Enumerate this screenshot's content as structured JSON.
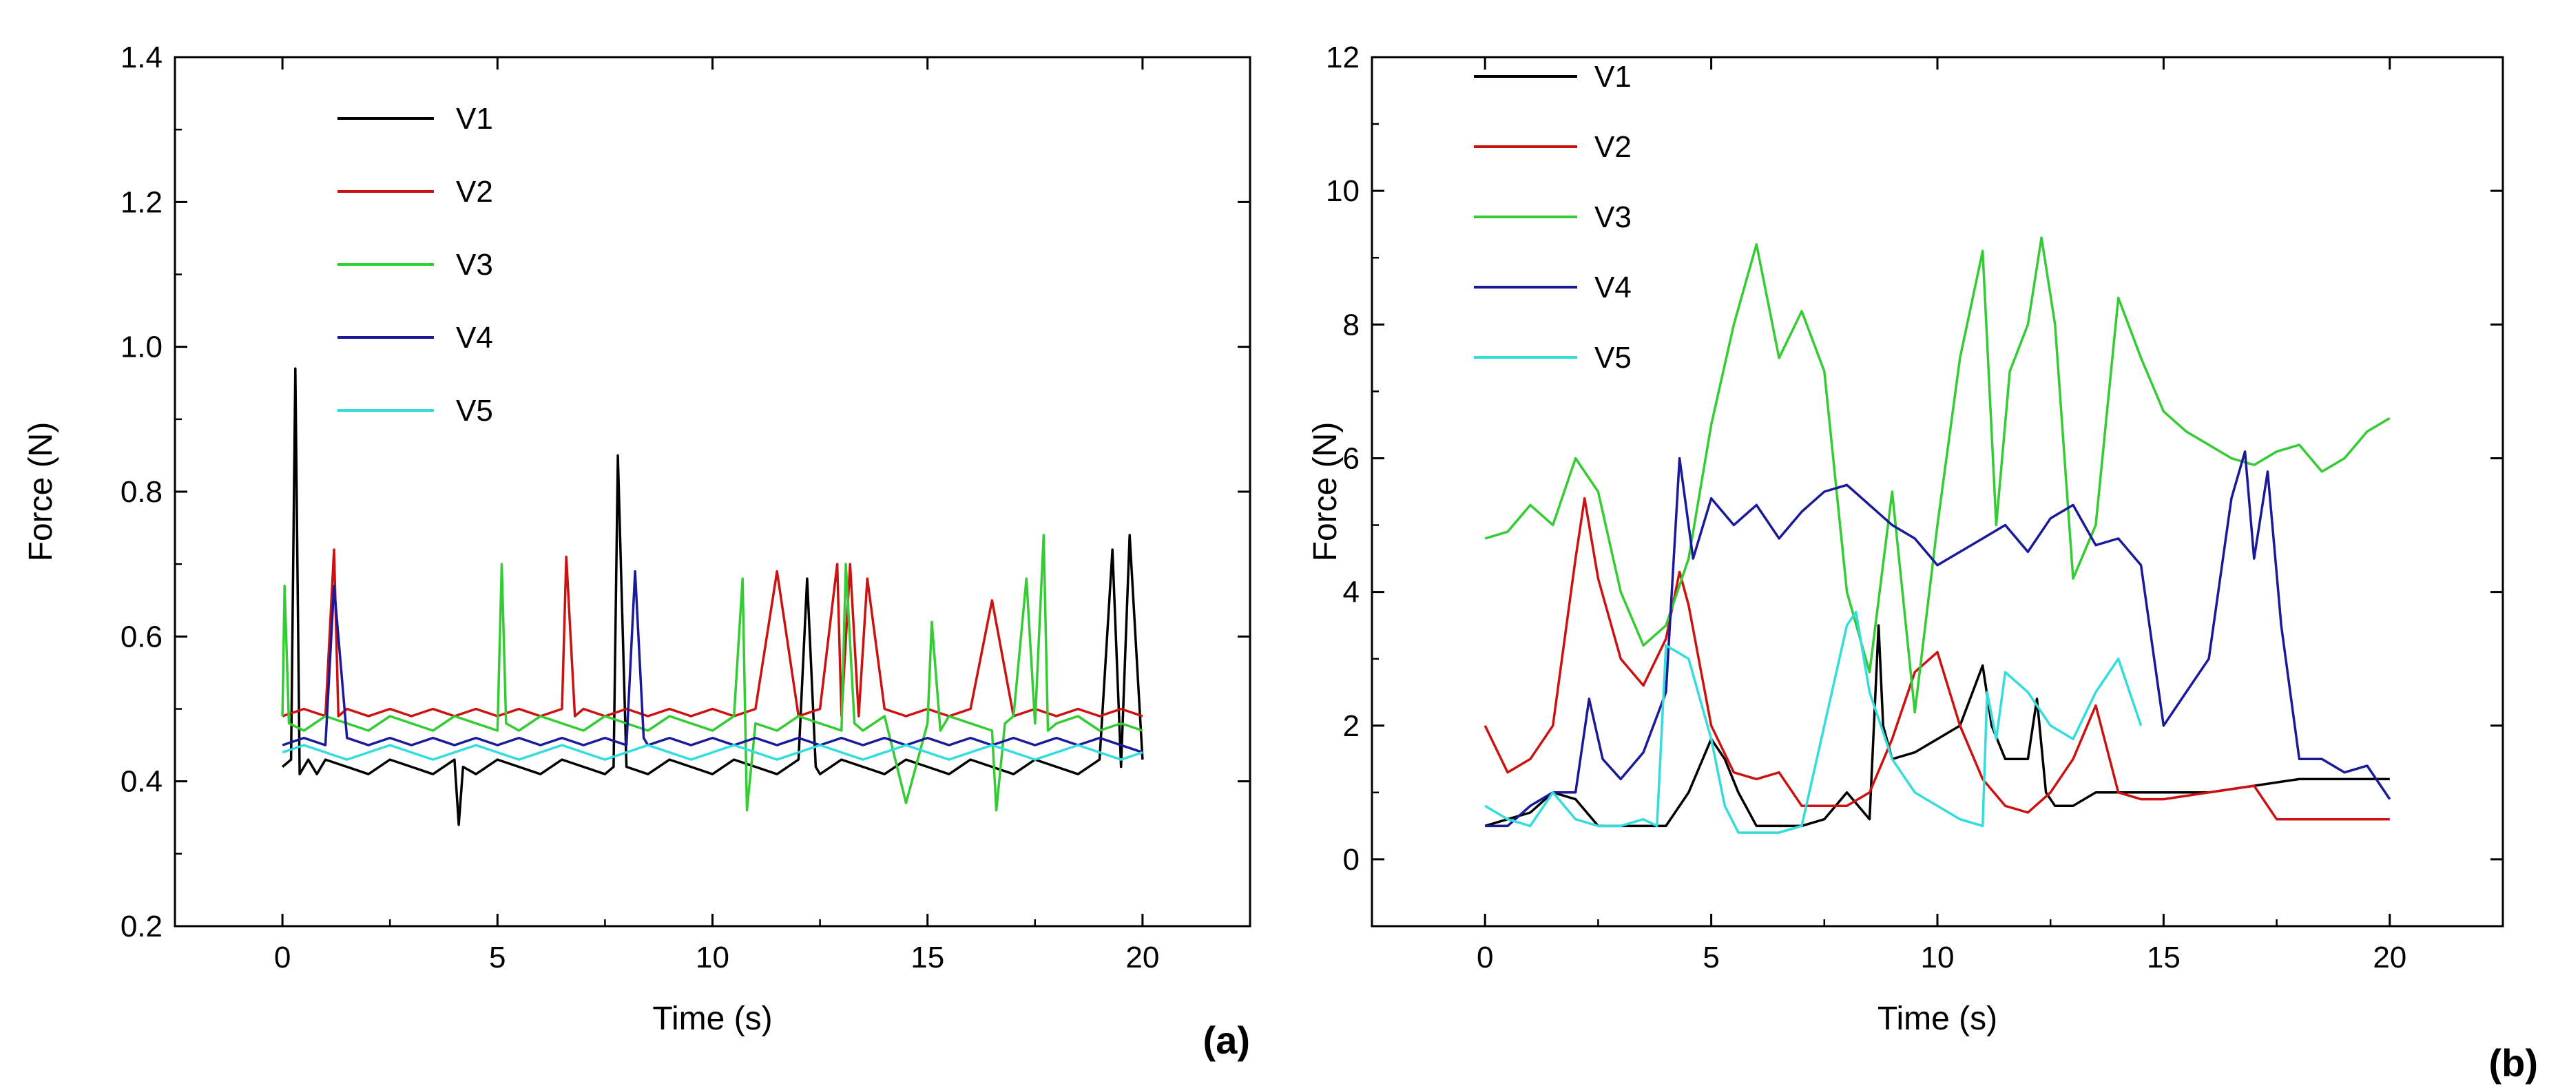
{
  "chart_data": [
    {
      "type": "line",
      "panel_label": "(a)",
      "xlabel": "Time (s)",
      "ylabel": "Force (N)",
      "xlim": [
        -2.5,
        22.5
      ],
      "ylim": [
        0.2,
        1.4
      ],
      "xticks": [
        0,
        5,
        10,
        15,
        20
      ],
      "yticks": [
        0.2,
        0.4,
        0.6,
        0.8,
        1.0,
        1.2,
        1.4
      ],
      "ytick_labels": [
        "0.2",
        "0.4",
        "0.6",
        "0.8",
        "1.0",
        "1.2",
        "1.4"
      ],
      "grid": false,
      "legend_placement": "top-left",
      "series": [
        {
          "name": "V1",
          "color": "#000000",
          "x": [
            0,
            0.2,
            0.3,
            0.4,
            0.6,
            0.8,
            1.0,
            1.5,
            2.0,
            2.5,
            3.0,
            3.5,
            4.0,
            4.1,
            4.2,
            4.5,
            5.0,
            5.5,
            6.0,
            6.5,
            7.0,
            7.5,
            7.7,
            7.8,
            8.0,
            8.5,
            9.0,
            9.5,
            10.0,
            10.5,
            11.0,
            11.5,
            12.0,
            12.2,
            12.4,
            12.5,
            13.0,
            13.5,
            14.0,
            14.5,
            15.0,
            15.5,
            16.0,
            16.5,
            17.0,
            17.5,
            18.0,
            18.5,
            19.0,
            19.3,
            19.5,
            19.7,
            20.0
          ],
          "y": [
            0.42,
            0.43,
            0.97,
            0.41,
            0.43,
            0.41,
            0.43,
            0.42,
            0.41,
            0.43,
            0.42,
            0.41,
            0.43,
            0.34,
            0.42,
            0.41,
            0.43,
            0.42,
            0.41,
            0.43,
            0.42,
            0.41,
            0.42,
            0.85,
            0.42,
            0.41,
            0.43,
            0.42,
            0.41,
            0.43,
            0.42,
            0.41,
            0.43,
            0.68,
            0.42,
            0.41,
            0.43,
            0.42,
            0.41,
            0.43,
            0.42,
            0.41,
            0.43,
            0.42,
            0.41,
            0.43,
            0.42,
            0.41,
            0.43,
            0.72,
            0.42,
            0.74,
            0.43
          ]
        },
        {
          "name": "V2",
          "color": "#cc1111",
          "x": [
            0,
            0.5,
            1.0,
            1.2,
            1.3,
            1.5,
            2.0,
            2.5,
            3.0,
            3.5,
            4.0,
            4.5,
            5.0,
            5.5,
            6.0,
            6.5,
            6.6,
            6.8,
            7.0,
            7.5,
            8.0,
            8.5,
            9.0,
            9.5,
            10.0,
            10.5,
            11.0,
            11.5,
            12.0,
            12.5,
            12.9,
            13.0,
            13.2,
            13.4,
            13.6,
            14.0,
            14.5,
            15.0,
            15.5,
            16.0,
            16.5,
            17.0,
            17.5,
            18.0,
            18.5,
            19.0,
            19.5,
            20.0
          ],
          "y": [
            0.49,
            0.5,
            0.49,
            0.72,
            0.49,
            0.5,
            0.49,
            0.5,
            0.49,
            0.5,
            0.49,
            0.5,
            0.49,
            0.5,
            0.49,
            0.5,
            0.71,
            0.49,
            0.5,
            0.49,
            0.5,
            0.49,
            0.5,
            0.49,
            0.5,
            0.49,
            0.5,
            0.69,
            0.49,
            0.5,
            0.7,
            0.49,
            0.7,
            0.49,
            0.68,
            0.5,
            0.49,
            0.5,
            0.49,
            0.5,
            0.65,
            0.49,
            0.5,
            0.49,
            0.5,
            0.49,
            0.5,
            0.49
          ]
        },
        {
          "name": "V3",
          "color": "#33cc33",
          "x": [
            0,
            0.05,
            0.15,
            0.5,
            1.0,
            1.5,
            2.0,
            2.5,
            3.0,
            3.5,
            4.0,
            4.5,
            5.0,
            5.1,
            5.2,
            5.5,
            6.0,
            6.5,
            7.0,
            7.5,
            8.0,
            8.5,
            9.0,
            9.5,
            10.0,
            10.5,
            10.7,
            10.8,
            11.0,
            11.5,
            12.0,
            12.5,
            13.0,
            13.1,
            13.3,
            13.5,
            14.0,
            14.5,
            15.0,
            15.1,
            15.3,
            15.5,
            16.0,
            16.5,
            16.6,
            16.8,
            17.0,
            17.3,
            17.5,
            17.7,
            17.8,
            18.0,
            18.5,
            19.0,
            19.5,
            20.0
          ],
          "y": [
            0.49,
            0.67,
            0.48,
            0.47,
            0.49,
            0.48,
            0.47,
            0.49,
            0.48,
            0.47,
            0.49,
            0.48,
            0.47,
            0.7,
            0.48,
            0.47,
            0.49,
            0.48,
            0.47,
            0.49,
            0.48,
            0.47,
            0.49,
            0.48,
            0.47,
            0.49,
            0.68,
            0.36,
            0.48,
            0.47,
            0.49,
            0.48,
            0.47,
            0.7,
            0.48,
            0.47,
            0.49,
            0.37,
            0.48,
            0.62,
            0.47,
            0.49,
            0.48,
            0.47,
            0.36,
            0.48,
            0.49,
            0.68,
            0.48,
            0.74,
            0.47,
            0.48,
            0.49,
            0.47,
            0.48,
            0.47
          ]
        },
        {
          "name": "V4",
          "color": "#1a1a99",
          "x": [
            0,
            0.5,
            1.0,
            1.2,
            1.5,
            2.0,
            2.5,
            3.0,
            3.5,
            4.0,
            4.5,
            5.0,
            5.5,
            6.0,
            6.5,
            7.0,
            7.5,
            8.0,
            8.2,
            8.4,
            8.5,
            9.0,
            9.5,
            10.0,
            10.5,
            11.0,
            11.5,
            12.0,
            12.5,
            13.0,
            13.5,
            14.0,
            14.5,
            15.0,
            15.5,
            16.0,
            16.5,
            17.0,
            17.5,
            18.0,
            18.5,
            19.0,
            19.5,
            20.0
          ],
          "y": [
            0.45,
            0.46,
            0.45,
            0.67,
            0.46,
            0.45,
            0.46,
            0.45,
            0.46,
            0.45,
            0.46,
            0.45,
            0.46,
            0.45,
            0.46,
            0.45,
            0.46,
            0.45,
            0.69,
            0.46,
            0.45,
            0.46,
            0.45,
            0.46,
            0.45,
            0.46,
            0.45,
            0.46,
            0.45,
            0.46,
            0.45,
            0.46,
            0.45,
            0.46,
            0.45,
            0.46,
            0.45,
            0.46,
            0.45,
            0.46,
            0.45,
            0.46,
            0.45,
            0.44
          ]
        },
        {
          "name": "V5",
          "color": "#33dddd",
          "x": [
            0,
            0.5,
            1.0,
            1.5,
            2.0,
            2.5,
            3.0,
            3.5,
            4.0,
            4.5,
            5.0,
            5.5,
            6.0,
            6.5,
            7.0,
            7.5,
            8.0,
            8.5,
            9.0,
            9.5,
            10.0,
            10.5,
            11.0,
            11.5,
            12.0,
            12.5,
            13.0,
            13.5,
            14.0,
            14.5,
            15.0,
            15.5,
            16.0,
            16.5,
            17.0,
            17.5,
            18.0,
            18.5,
            19.0,
            19.5,
            20.0
          ],
          "y": [
            0.44,
            0.45,
            0.44,
            0.43,
            0.44,
            0.45,
            0.44,
            0.43,
            0.44,
            0.45,
            0.44,
            0.43,
            0.44,
            0.45,
            0.44,
            0.43,
            0.44,
            0.45,
            0.44,
            0.43,
            0.44,
            0.45,
            0.44,
            0.43,
            0.44,
            0.45,
            0.44,
            0.43,
            0.44,
            0.45,
            0.44,
            0.43,
            0.44,
            0.45,
            0.44,
            0.43,
            0.44,
            0.45,
            0.44,
            0.43,
            0.44
          ]
        }
      ]
    },
    {
      "type": "line",
      "panel_label": "(b)",
      "xlabel": "Time (s)",
      "ylabel": "Force (N)",
      "xlim": [
        -2.5,
        22.5
      ],
      "ylim": [
        -1,
        12
      ],
      "xticks": [
        0,
        5,
        10,
        15,
        20
      ],
      "yticks": [
        0,
        2,
        4,
        6,
        8,
        10,
        12
      ],
      "ytick_labels": [
        "0",
        "2",
        "4",
        "6",
        "8",
        "10",
        "12"
      ],
      "grid": false,
      "legend_placement": "top-left",
      "series": [
        {
          "name": "V1",
          "color": "#000000",
          "x": [
            0,
            0.5,
            1.0,
            1.5,
            2.0,
            2.5,
            3.0,
            3.5,
            4.0,
            4.5,
            5.0,
            5.3,
            5.6,
            6.0,
            6.5,
            7.0,
            7.5,
            8.0,
            8.5,
            8.7,
            8.8,
            9.0,
            9.5,
            10.0,
            10.5,
            11.0,
            11.2,
            11.5,
            12.0,
            12.2,
            12.4,
            12.6,
            13.0,
            13.5,
            14.0,
            15.0,
            16.0,
            17.0,
            18.0,
            19.0,
            20.0
          ],
          "y": [
            0.5,
            0.6,
            0.7,
            1.0,
            0.9,
            0.5,
            0.5,
            0.5,
            0.5,
            1.0,
            1.8,
            1.5,
            1.0,
            0.5,
            0.5,
            0.5,
            0.6,
            1.0,
            0.6,
            3.5,
            2.0,
            1.5,
            1.6,
            1.8,
            2.0,
            2.9,
            2.0,
            1.5,
            1.5,
            2.4,
            1.0,
            0.8,
            0.8,
            1.0,
            1.0,
            1.0,
            1.0,
            1.1,
            1.2,
            1.2,
            1.2
          ]
        },
        {
          "name": "V2",
          "color": "#cc1111",
          "x": [
            0,
            0.5,
            1.0,
            1.5,
            2.0,
            2.2,
            2.5,
            3.0,
            3.5,
            4.0,
            4.3,
            4.5,
            5.0,
            5.5,
            6.0,
            6.5,
            7.0,
            7.5,
            8.0,
            8.5,
            9.0,
            9.5,
            10.0,
            10.5,
            11.0,
            11.5,
            12.0,
            12.5,
            13.0,
            13.5,
            14.0,
            14.5,
            15.0,
            16.0,
            17.0,
            17.5,
            18.0,
            19.0,
            20.0
          ],
          "y": [
            2.0,
            1.3,
            1.5,
            2.0,
            4.5,
            5.4,
            4.2,
            3.0,
            2.6,
            3.3,
            4.3,
            3.8,
            2.0,
            1.3,
            1.2,
            1.3,
            0.8,
            0.8,
            0.8,
            1.0,
            1.8,
            2.8,
            3.1,
            2.0,
            1.2,
            0.8,
            0.7,
            1.0,
            1.5,
            2.3,
            1.0,
            0.9,
            0.9,
            1.0,
            1.1,
            0.6,
            0.6,
            0.6,
            0.6
          ]
        },
        {
          "name": "V3",
          "color": "#33cc33",
          "x": [
            0,
            0.5,
            1.0,
            1.5,
            2.0,
            2.5,
            3.0,
            3.5,
            4.0,
            4.5,
            5.0,
            5.5,
            6.0,
            6.5,
            7.0,
            7.5,
            8.0,
            8.5,
            9.0,
            9.5,
            10.0,
            10.5,
            11.0,
            11.3,
            11.6,
            12.0,
            12.3,
            12.6,
            13.0,
            13.5,
            14.0,
            14.5,
            15.0,
            15.5,
            16.0,
            16.5,
            17.0,
            17.5,
            18.0,
            18.5,
            19.0,
            19.5,
            20.0
          ],
          "y": [
            4.8,
            4.9,
            5.3,
            5.0,
            6.0,
            5.5,
            4.0,
            3.2,
            3.5,
            4.5,
            6.5,
            8.0,
            9.2,
            7.5,
            8.2,
            7.3,
            4.0,
            2.8,
            5.5,
            2.2,
            5.0,
            7.5,
            9.1,
            5.0,
            7.3,
            8.0,
            9.3,
            8.0,
            4.2,
            5.0,
            8.4,
            7.5,
            6.7,
            6.4,
            6.2,
            6.0,
            5.9,
            6.1,
            6.2,
            5.8,
            6.0,
            6.4,
            6.6
          ]
        },
        {
          "name": "V4",
          "color": "#1a1a99",
          "x": [
            0,
            0.5,
            1.0,
            1.5,
            2.0,
            2.3,
            2.6,
            3.0,
            3.5,
            4.0,
            4.3,
            4.6,
            5.0,
            5.5,
            6.0,
            6.5,
            7.0,
            7.5,
            8.0,
            8.5,
            9.0,
            9.5,
            10.0,
            10.5,
            11.0,
            11.5,
            12.0,
            12.5,
            13.0,
            13.5,
            14.0,
            14.5,
            15.0,
            15.5,
            16.0,
            16.5,
            16.8,
            17.0,
            17.3,
            17.6,
            18.0,
            18.5,
            19.0,
            19.5,
            20.0
          ],
          "y": [
            0.5,
            0.5,
            0.8,
            1.0,
            1.0,
            2.4,
            1.5,
            1.2,
            1.6,
            2.5,
            6.0,
            4.5,
            5.4,
            5.0,
            5.3,
            4.8,
            5.2,
            5.5,
            5.6,
            5.3,
            5.0,
            4.8,
            4.4,
            4.6,
            4.8,
            5.0,
            4.6,
            5.1,
            5.3,
            4.7,
            4.8,
            4.4,
            2.0,
            2.5,
            3.0,
            5.4,
            6.1,
            4.5,
            5.8,
            3.5,
            1.5,
            1.5,
            1.3,
            1.4,
            0.9
          ]
        },
        {
          "name": "V5",
          "color": "#33dddd",
          "x": [
            0,
            0.5,
            1.0,
            1.5,
            2.0,
            2.5,
            3.0,
            3.5,
            3.8,
            4.0,
            4.5,
            5.0,
            5.3,
            5.6,
            6.0,
            6.5,
            7.0,
            7.5,
            8.0,
            8.2,
            8.5,
            9.0,
            9.5,
            10.0,
            10.5,
            11.0,
            11.1,
            11.3,
            11.5,
            12.0,
            12.5,
            13.0,
            13.5,
            14.0,
            14.5
          ],
          "y": [
            0.8,
            0.6,
            0.5,
            1.0,
            0.6,
            0.5,
            0.5,
            0.6,
            0.5,
            3.2,
            3.0,
            1.8,
            0.8,
            0.4,
            0.4,
            0.4,
            0.5,
            2.0,
            3.5,
            3.7,
            2.5,
            1.5,
            1.0,
            0.8,
            0.6,
            0.5,
            2.5,
            1.8,
            2.8,
            2.5,
            2.0,
            1.8,
            2.5,
            3.0,
            2.0
          ]
        }
      ]
    }
  ]
}
